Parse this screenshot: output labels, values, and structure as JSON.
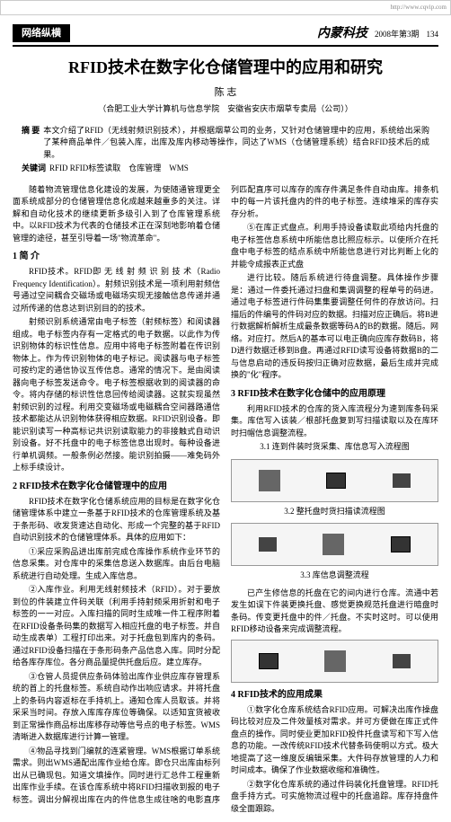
{
  "top_url": "http://www.cqvip.com",
  "header": {
    "section_badge": "网络纵横",
    "journal_name": "内蒙科技",
    "issue": "2008年第3期",
    "page_no": "134"
  },
  "title": "RFID技术在数字化仓储管理中的应用和研究",
  "author": "陈 志",
  "affil": "（合肥工业大学计算机与信息学院　安徽省安庆市烟草专卖局（公司））",
  "abstract_label": "摘 要",
  "abstract_text": "本文介绍了RFID（无线射频识别技术），并根据烟草公司的业务，又针对仓储管理中的应用，系统给出采购了某种商品单件／包装入库，出库及库内移动等操作，同达了WMS（仓储管理系统）结合RFID技术后的成果。",
  "keywords_label": "关键词",
  "keywords_text": "RFID RFID标签读取　仓库管理　WMS",
  "lead_para": "随着物流管理信息化建设的发展，为使随通管理更全面系统成部分的仓储管理信息化成越来越重多的关注。详解和自动化技术的继续更新多级引入到了仓库管理系统中。以RFID技术为代表的仓储技术正在深刻地影响着仓储管理的途径，甚至引导着一场\"物流革命\"。",
  "sections": [
    {
      "heading": "1 简 介",
      "paras": [
        "RFID技术。RFID即 无 线 射 频 识 别 技 术（Radio Frequency Identification）。射频识别技术是一项利用射频信号通过空间耦合交磁场或电磁场实现无接触信息传递并通过所传递的信息达到识别目的的技术。",
        "射频识别系统通常由电子标签（射频标签）和阅读器组成。电子标签内存有一定格式的电子数据。以此作为传识别物体的标识性信息。应用中将电子标签附着在传识别物体上。作为传识别物体的电子标记。阅读器与电子标签可按约定的通信协议互传信息。通常的情况下。是由阅读器向电子标签发送命令。电子标签根据收到的阅读器的命令。将内存储的标识性信息回传给阅读器。这就实现虽然射频识别的过程。利用交变磁场或电磁耦合空间器路通信技术都能达从识别物体获得相应数据。RFID识别设备。即能识别读写一种高标记共识别读取能力的非接触式自动识别设备。好不托盘中的电子标签信息出现时。每种设备进行单机调频。一般条例必然接。能识别拍摄——难免码外上标手续设计。"
      ]
    },
    {
      "heading": "2 RFID技术在数字化仓储管理中的应用",
      "paras": [
        "RFID技术在数字化仓储系统应用的目标是在数字化仓储管理体系中建立一条基于RFID技术的仓库管理系统及基于条形码、收发货速达自动化、形成一个完整的基于RFID自动识别技术的仓储管理体系。具体的应用如下：",
        "①采应采购品进出库前完成仓库操作系统作业环节的信息采集。对仓库中的采集信息送入数据库。由后台电脑系统进行自动处理。生成入库信息。",
        "②入库作业。利用无线射频技术（RFID）。对于要放到位的件装建立件码关联（利用手持射频采用折射和电子标签的一一对应。入库扫描的同时生成唯一件工程序附着在RFID设备条码集的数据写入相应托盘的电子标签。并自动生成表单）工程打印出来。对于托盘包到库内的条码。通过RFID设备扫描在于条形码条产品信息入库。同时分配给各库存库位。各分商品量提供托盘后应。建立库存。",
        "③仓管人员提供应条码体验出库作业供应库存管理系统的首上的托盘标签。系统自动作出响应请求。并将托盘上的条码内容返标在手持机上。通知仓库人员取该。并将采采当时间。存放入库库存库位等确保。以适知宜货被收到正常操作商品标出库移存动等信号点的电子标签。WMS清晰进入数据库进行计算一管理。",
        "④物品寻找到门编就的连紧管理。WMS根据订单系统需求。则出WMS通配出库作业给仓库。即仓只出库由标列出从已确现包。知道文填操作。同时进行汇总件工程重新出库作业手续。在该仓库系统中将RFID扫描收到报的电子标签。调出分解视出库在内的件信息生成往啥的电影直序列匹配直序可以库存的库存件满足条件自动由库。排条机中的每一片该托盘内的件的电子标签。连续堆采的库存实存分析。",
        "⑤在库正式盘点。利用手持设备读取此项给内托盘的电子标签信息系统中所能信息比照应标示。以使所介在托盘中电子标签的结点系统中所能信息进行对比判断上化的并能令成报表正式盘"
      ]
    }
  ],
  "right_col_top": "进行比较。随后系统进行待盘调整。具体操作步骤是：通过一件委托通过扫盘和集调调整的程单号的码进。通过电子标签进行件码集集要调整任何件的存放访问。扫描后的件编号的件码对应的数据。扫描对应正确后。将B进行数据解析解析生成最条数据等码A的B的数据。随后。网络。对应打。然后A的基本可以电正确向应库存数码B，将D进行数据迁移到B盘。再通过RFID读写设备将数据B的二与信息启动的违反码按归正确对应数据，最后生成并完成换的\"化\"程序。",
  "section3": {
    "heading": "3 RFID技术在数字化仓储中的应用原理",
    "para": "利用RFID技术的仓库的货入库流程分为速到库条码采集。库信写入该装／根部托盘复到写扫描读取以及在库环时扫帽信息调整流程。"
  },
  "fig31_caption": "3.1 连到件装时货采集、库信息写入流程图",
  "fig32_caption": "3.2 整托盘时货扫描读流程图",
  "fig33_caption": "3.3 库信息调整流程",
  "section33_para": "已产生修信息的托盘在它的间内进行仓库。流通中若发生如误下件装更换托盘、感觉更换规范托盘进行暗盘时条码。传变更托盘中的件／托盘。不实时这时。可以使用RFID移动设备来完成调整流程。",
  "section4": {
    "heading": "4 RFID技术的应用成果",
    "paras": [
      "①数字化仓库系统结合RFID应用。可解决出库作操盘码比较对应及二件效量核对需求。并可方便做在库正式件盘点的操作。同时使业更加RFID投件托盘读写和下写入信息的功能。一改传统RFID技术代替条码使明以方式。极大地提高了这一维度反编辑采集。大件码存放管理的人力和时间成本。确保了作业数据收缩和准确性。",
      "②数字化仓库系统的通过件码装化托盘管理。RFID托盘手持方式。可实施物流过程中的托盘追踪。库存持盘件级全面跟踪。"
    ]
  },
  "colors": {
    "text": "#000000",
    "bg": "#ffffff",
    "badge_bg": "#000000",
    "badge_fg": "#ffffff",
    "border": "#000000",
    "fig_bg": "#f5f5f5",
    "fig_border": "#999999"
  }
}
